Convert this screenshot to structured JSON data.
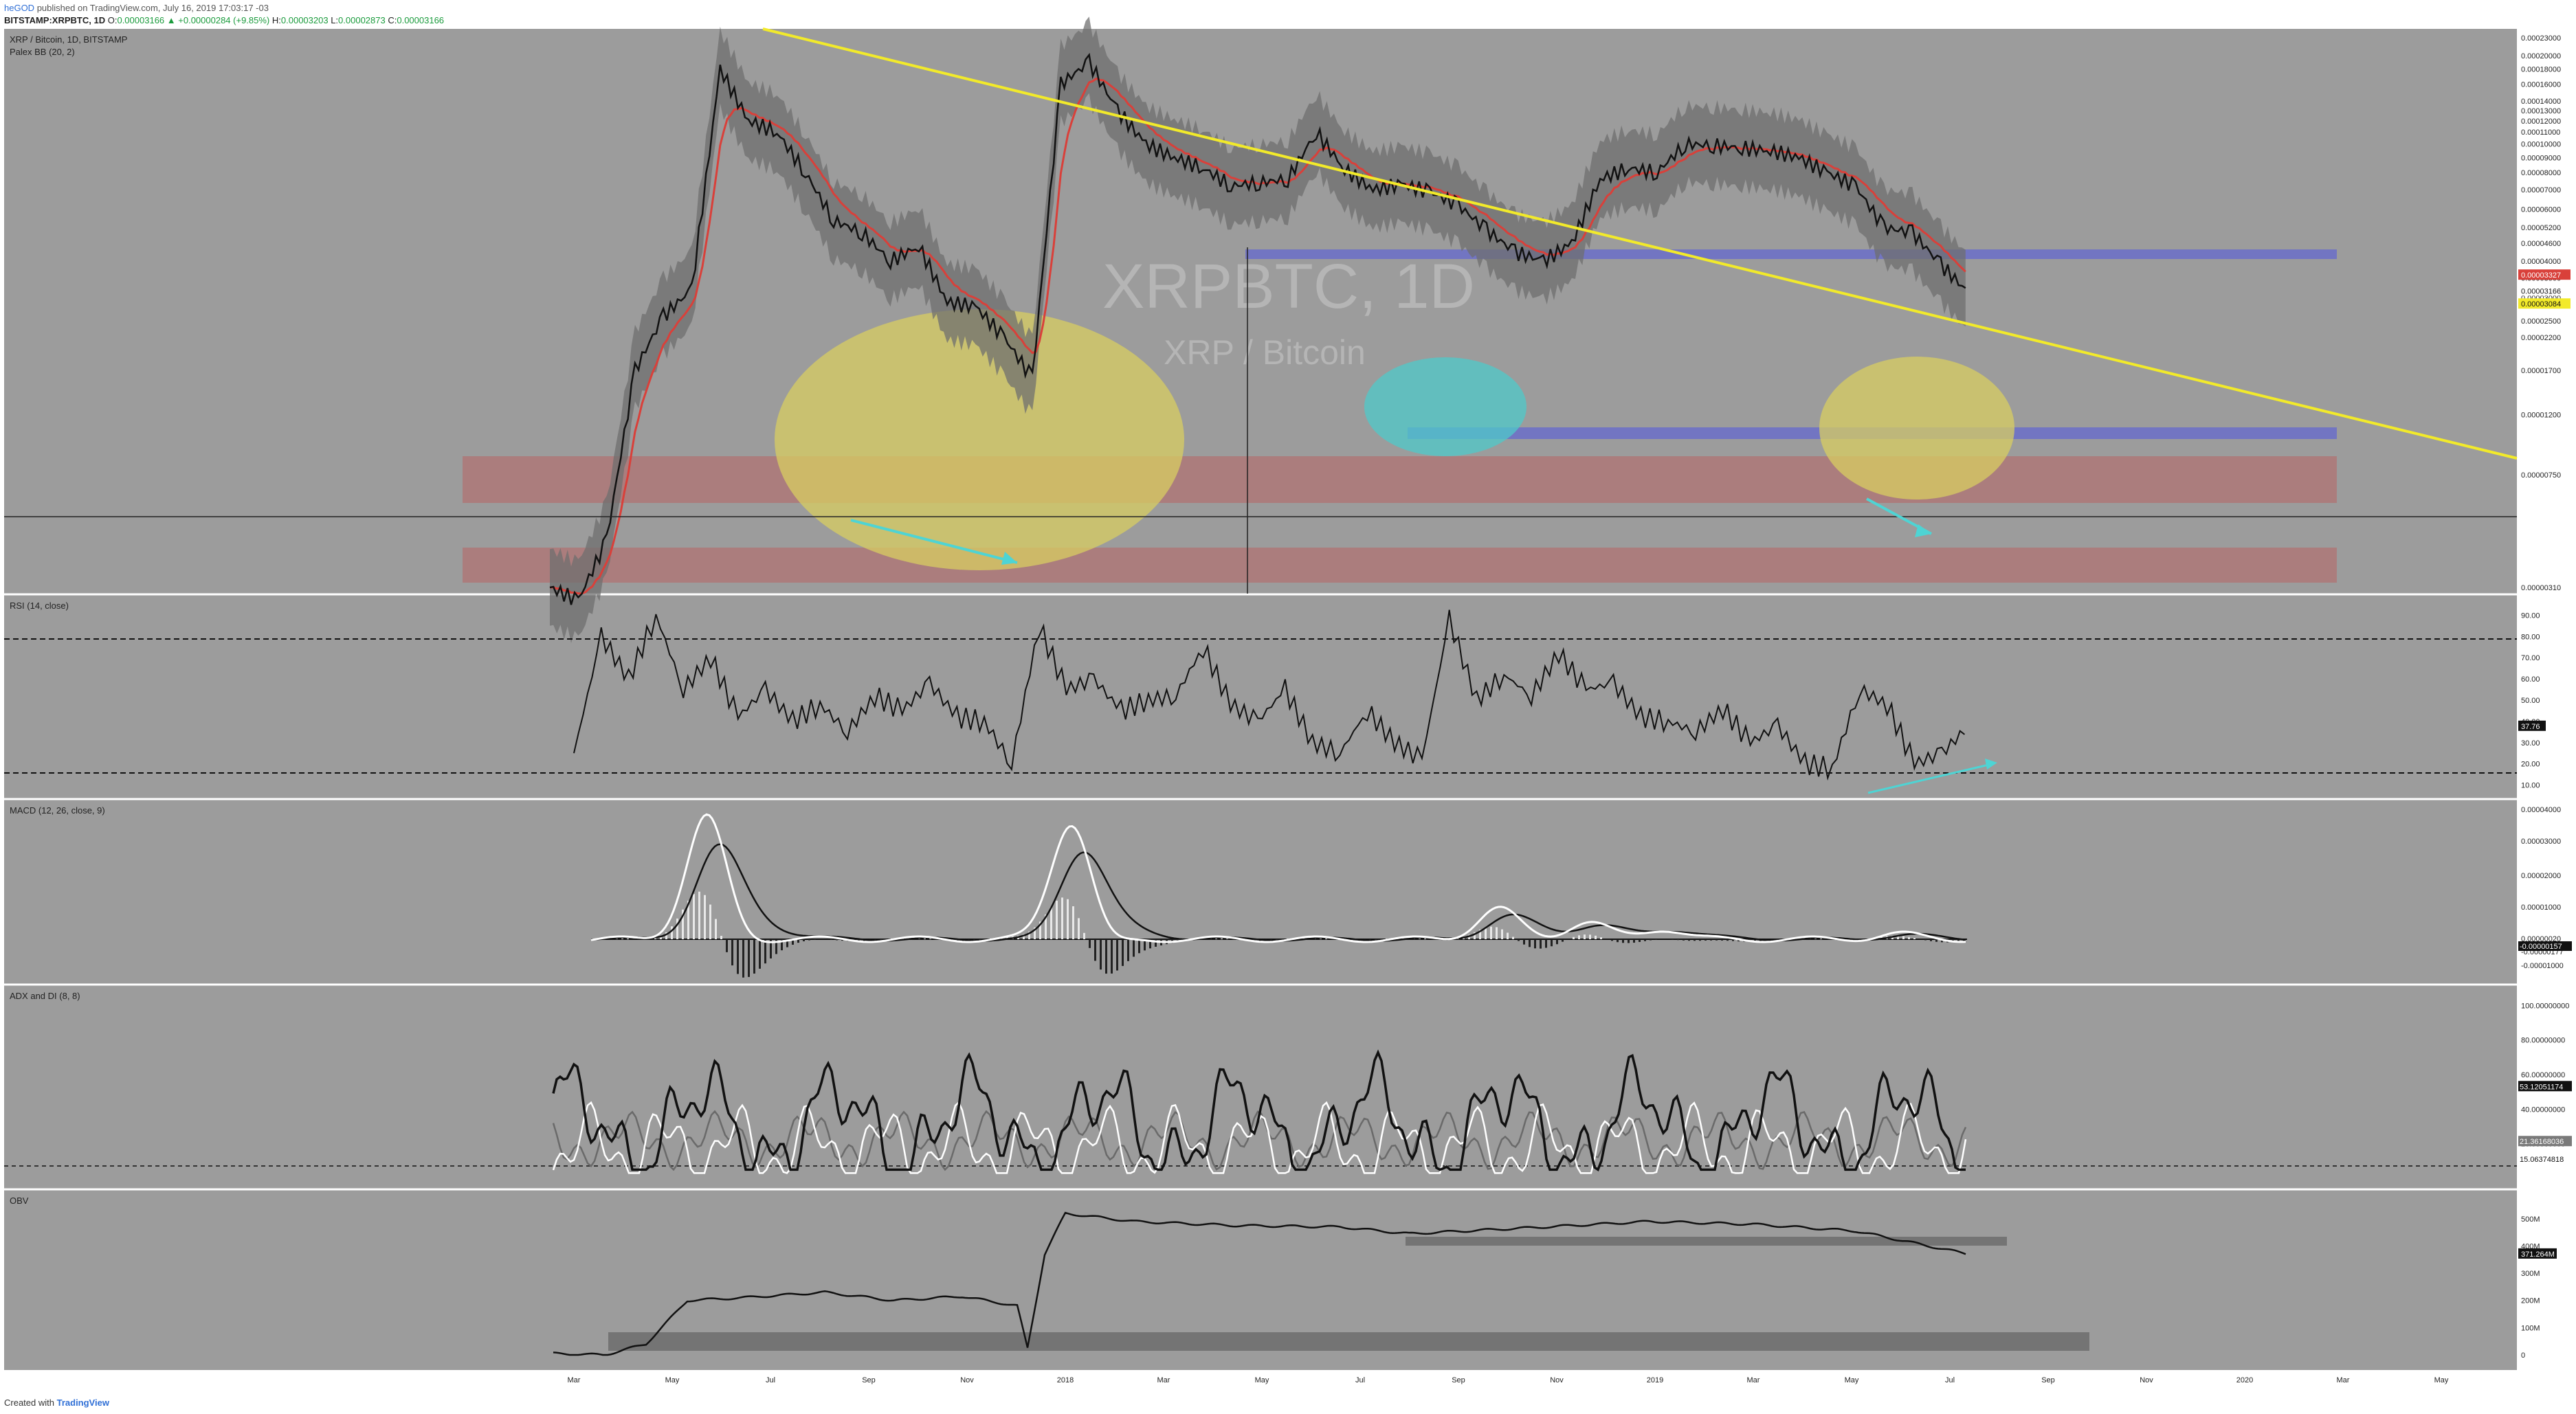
{
  "header": {
    "author": "heGOD",
    "published": "published on TradingView.com, July 16, 2019 17:03:17 -03",
    "symbol": "BITSTAMP:XRPBTC, 1D",
    "o_label": "O:",
    "o_value": "0.00003166",
    "change": "▲ +0.00000284 (+9.85%)",
    "h_label": "H:",
    "h_value": "0.00003203",
    "l_label": "L:",
    "l_value": "0.00002873",
    "c_label": "C:",
    "c_value": "0.00003166"
  },
  "footer": {
    "created_with": "Created with",
    "brand": "TradingView"
  },
  "colors": {
    "background": "#9c9c9c",
    "trendline": "#f2ea2a",
    "ema": "#d9403a",
    "candle": "#111111",
    "cloud": "#6f6f6f",
    "ellipse_yellow": "#d8cd62",
    "ellipse_cyan": "#4fc9c9",
    "band_red": "#b07373",
    "band_blue": "#6b6ec9",
    "arrow": "#4ed4d4",
    "obv_zone": "#6a6a6a"
  },
  "chart_data": [
    {
      "type": "line",
      "title": "XRP / Bitcoin, 1D, BITSTAMP",
      "indicator": "Palex BB (20, 2)",
      "watermark_symbol": "XRPBTC, 1D",
      "watermark_name": "XRP / Bitcoin",
      "x_ticks": [
        "Mar",
        "May",
        "Jul",
        "Sep",
        "Nov",
        "2018",
        "Mar",
        "May",
        "Jul",
        "Sep",
        "Nov",
        "2019",
        "Mar",
        "May",
        "Jul",
        "Sep",
        "Nov",
        "2020",
        "Mar",
        "May"
      ],
      "y_ticks": [
        "0.00023000",
        "0.00020000",
        "0.00018000",
        "0.00016000",
        "0.00014000",
        "0.00013000",
        "0.00012000",
        "0.00011000",
        "0.00010000",
        "0.00009000",
        "0.00008000",
        "0.00007000",
        "0.00006000",
        "0.00005200",
        "0.00004600",
        "0.00004000",
        "0.00003500",
        "0.00003000",
        "0.00002500",
        "0.00002200",
        "0.00001700",
        "0.00001200",
        "0.00000750",
        "0.00000310"
      ],
      "scale": "log",
      "price_labels": [
        "0.00003327",
        "0.00003166",
        "0.00003084"
      ],
      "series": [
        {
          "values": [
            3.1e-06,
            2.8e-06,
            4.5e-06,
            1.7e-05,
            2.6e-05,
            3.2e-05,
            0.00018,
            0.00012,
            0.00011,
            8e-05,
            5.5e-05,
            5e-05,
            4e-05,
            4.5e-05,
            2.9e-05,
            2.8e-05,
            2.2e-05,
            1.6e-05,
            0.00016,
            0.00019,
            0.00013,
            0.0001,
            9e-05,
            8.3e-05,
            7.2e-05,
            7.4e-05,
            7.6e-05,
            0.00011,
            8.2e-05,
            7e-05,
            7.3e-05,
            6.9e-05,
            6.2e-05,
            5.1e-05,
            4.3e-05,
            4e-05,
            4.6e-05,
            7.6e-05,
            8.3e-05,
            8e-05,
            0.0001,
            9.9e-05,
            9.7e-05,
            9.5e-05,
            9e-05,
            8e-05,
            7.2e-05,
            5.2e-05,
            5e-05,
            3.9e-05,
            3.1e-05
          ]
        }
      ]
    },
    {
      "type": "line",
      "title": "RSI (14, close)",
      "y_ticks": [
        "90.00",
        "80.00",
        "70.00",
        "60.00",
        "50.00",
        "40.00",
        "30.00",
        "20.00",
        "10.00"
      ],
      "levels": [
        80,
        20
      ],
      "last_value": "37.76",
      "series": [
        {
          "values": [
            25,
            80,
            60,
            90,
            55,
            70,
            42,
            55,
            40,
            48,
            35,
            52,
            45,
            58,
            42,
            40,
            20,
            85,
            55,
            60,
            45,
            50,
            52,
            75,
            48,
            40,
            55,
            30,
            25,
            45,
            30,
            22,
            88,
            50,
            62,
            52,
            72,
            55,
            58,
            42,
            40,
            35,
            46,
            30,
            38,
            20,
            18,
            55,
            48,
            20,
            25,
            37.76
          ]
        }
      ]
    },
    {
      "type": "line",
      "title": "MACD (12, 26, close, 9)",
      "y_ticks": [
        "0.00004000",
        "0.00003000",
        "0.00002000",
        "0.00001000",
        "0.00000020",
        "-0.00000177",
        "-0.00001000"
      ],
      "last_values": [
        "0.00000020",
        "-0.00000157",
        "-0.00000177"
      ]
    },
    {
      "type": "line",
      "title": "ADX and DI (8, 8)",
      "y_ticks": [
        "100.00000000",
        "80.00000000",
        "60.00000000",
        "40.00000000",
        "20.00000000"
      ],
      "last_values": [
        "53.12051174",
        "21.36168036",
        "15.06374818"
      ]
    },
    {
      "type": "line",
      "title": "OBV",
      "y_ticks": [
        "500M",
        "400M",
        "300M",
        "200M",
        "100M",
        "0"
      ],
      "last_value": "371.264M"
    }
  ]
}
